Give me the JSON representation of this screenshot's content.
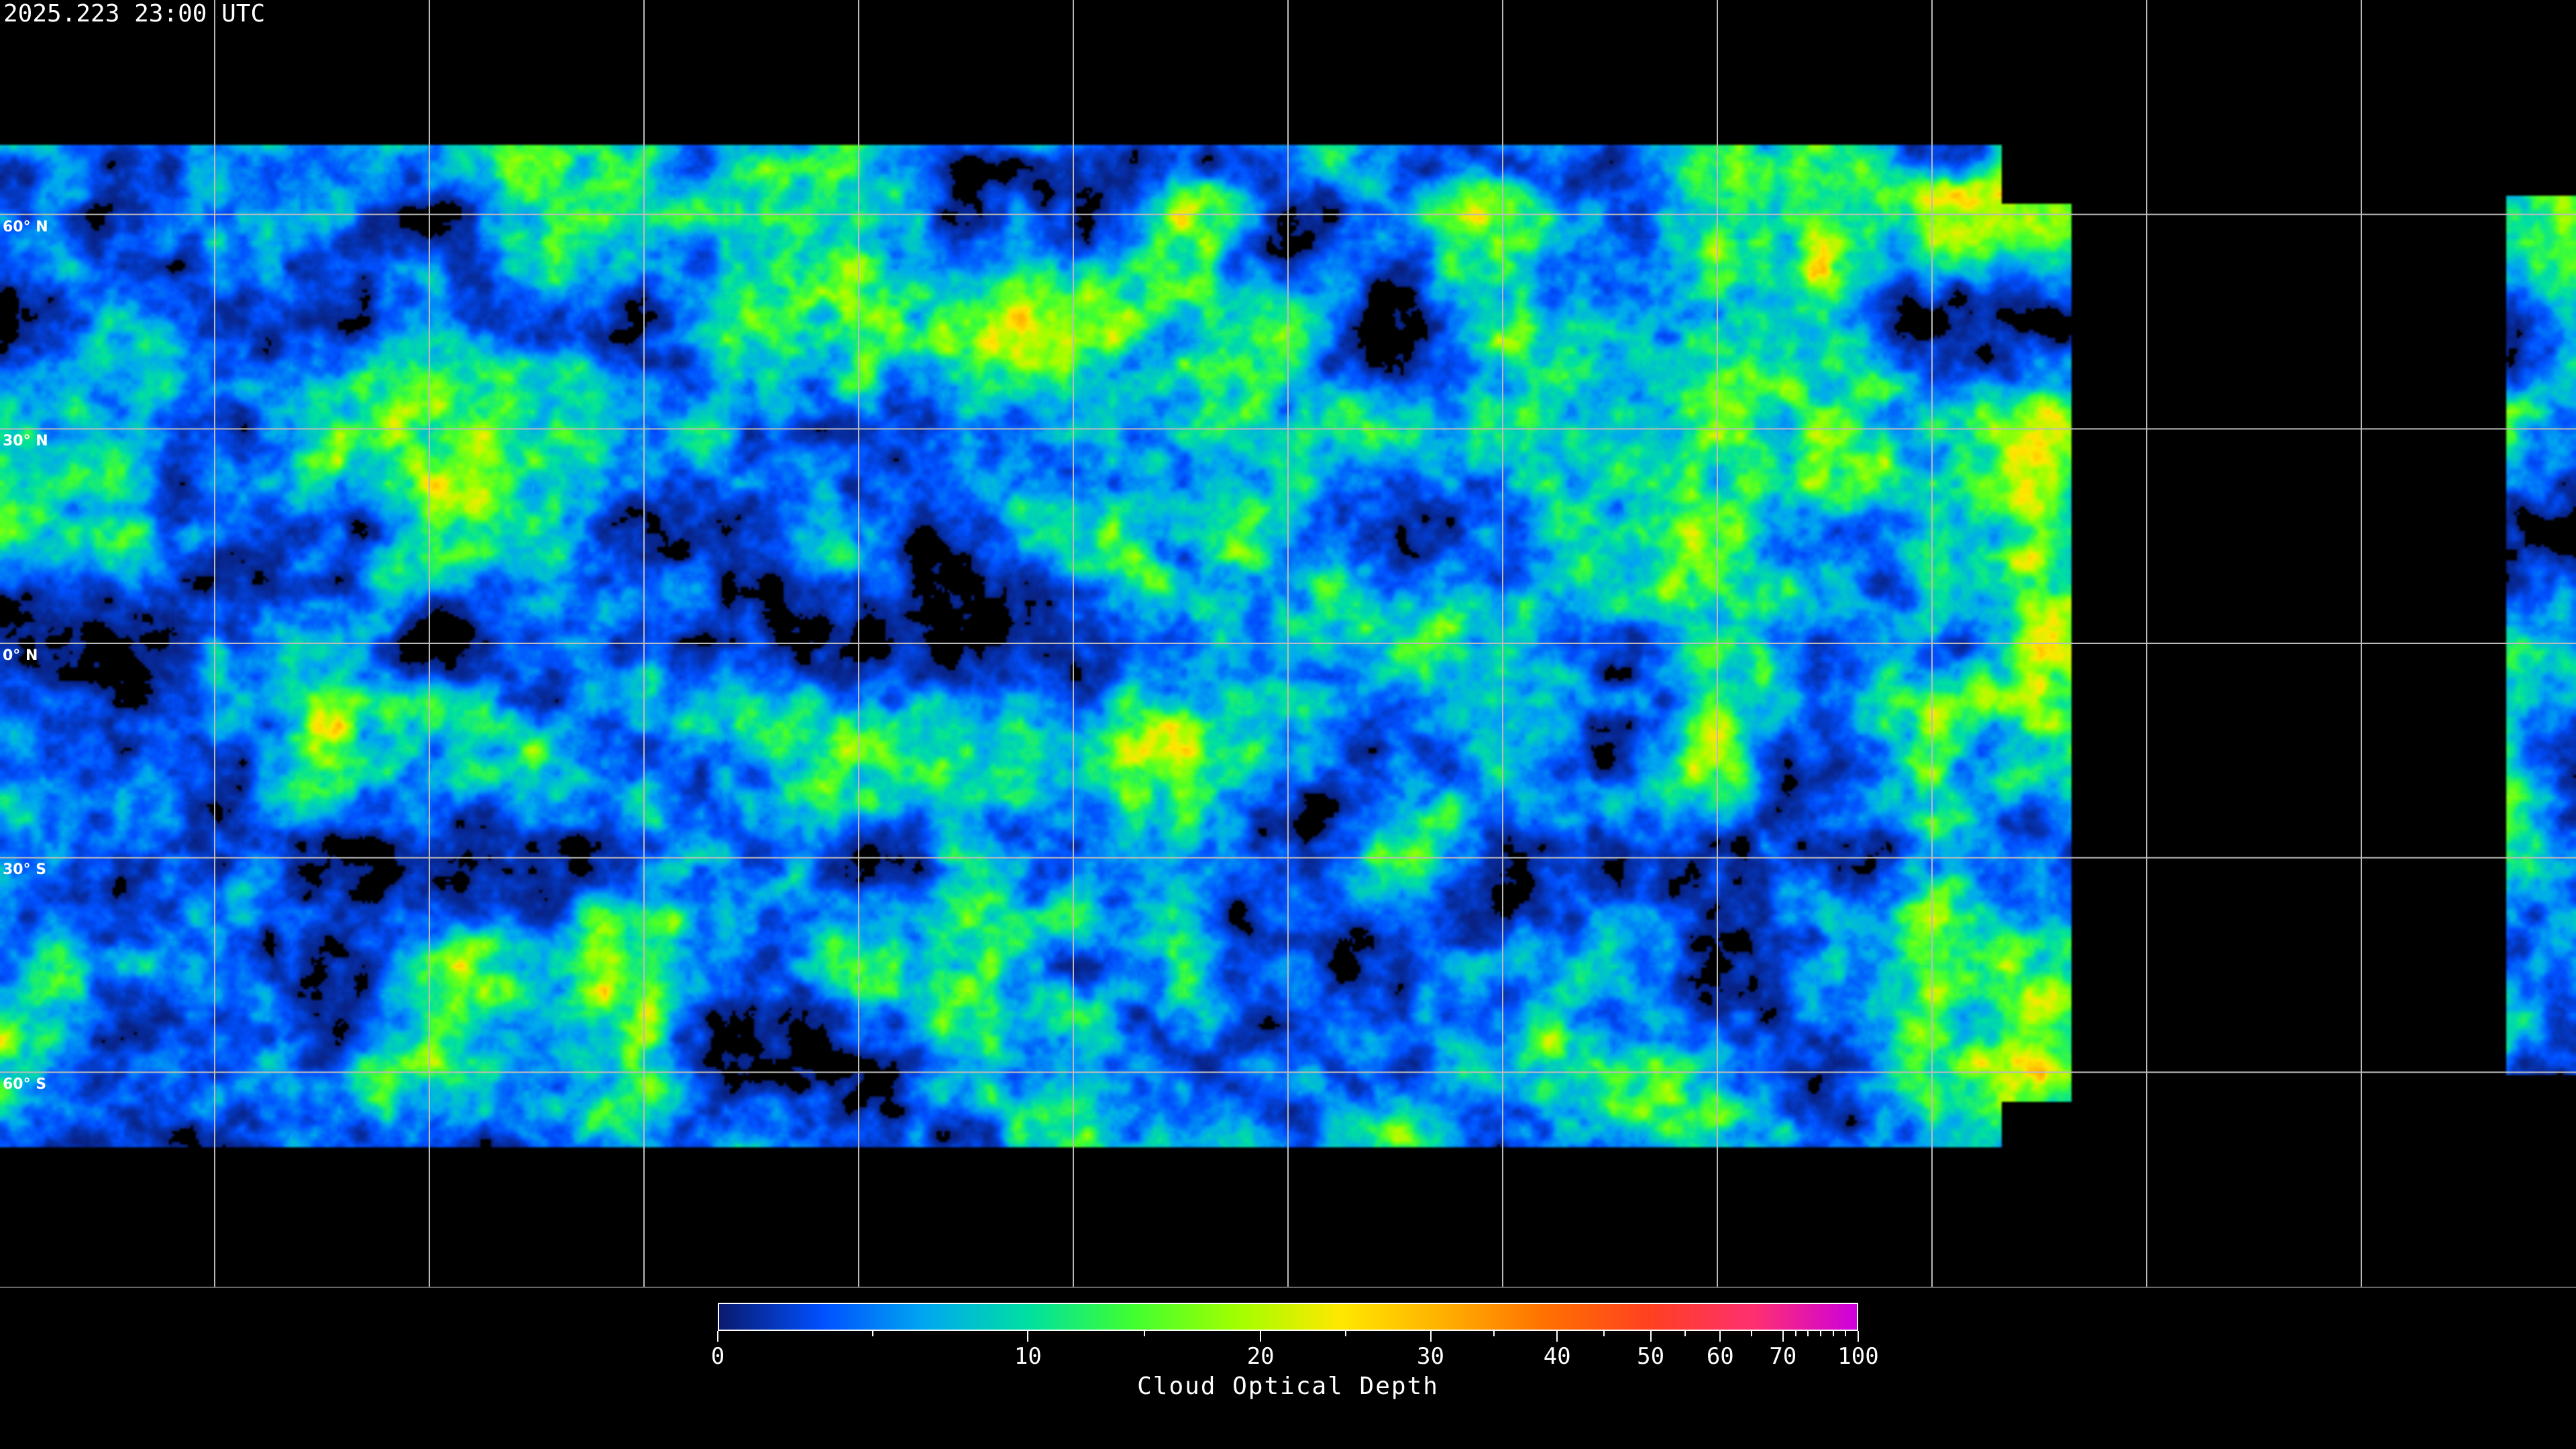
{
  "header": {
    "timestamp": "2025.223 23:00 UTC"
  },
  "map": {
    "projection": "equirectangular",
    "lat_labels": [
      "60° N",
      "30° N",
      "0° N",
      "30° S",
      "60° S"
    ],
    "lat_values": [
      60,
      30,
      0,
      -30,
      -60
    ],
    "lon_gridlines": [
      -150,
      -120,
      -90,
      -60,
      -30,
      0,
      30,
      60,
      90,
      120,
      150
    ],
    "background_color": "#000000",
    "gridline_color": "#bbbbbb",
    "coastline_color": "#ffffff"
  },
  "colorbar": {
    "title": "Cloud Optical Depth",
    "range": [
      0,
      100
    ],
    "tick_labels": [
      "0",
      "10",
      "20",
      "30",
      "40",
      "50",
      "60",
      "70",
      "100"
    ],
    "minor_ticks": [
      5,
      15,
      25,
      35,
      45,
      55,
      65,
      75,
      80,
      85,
      90,
      95
    ],
    "colors": [
      "#0a1a6e",
      "#0050ff",
      "#00a8f0",
      "#00e0a0",
      "#40ff30",
      "#a0ff00",
      "#ffe800",
      "#ffb000",
      "#ff7000",
      "#ff4020",
      "#ff3070",
      "#cc00dd"
    ]
  }
}
